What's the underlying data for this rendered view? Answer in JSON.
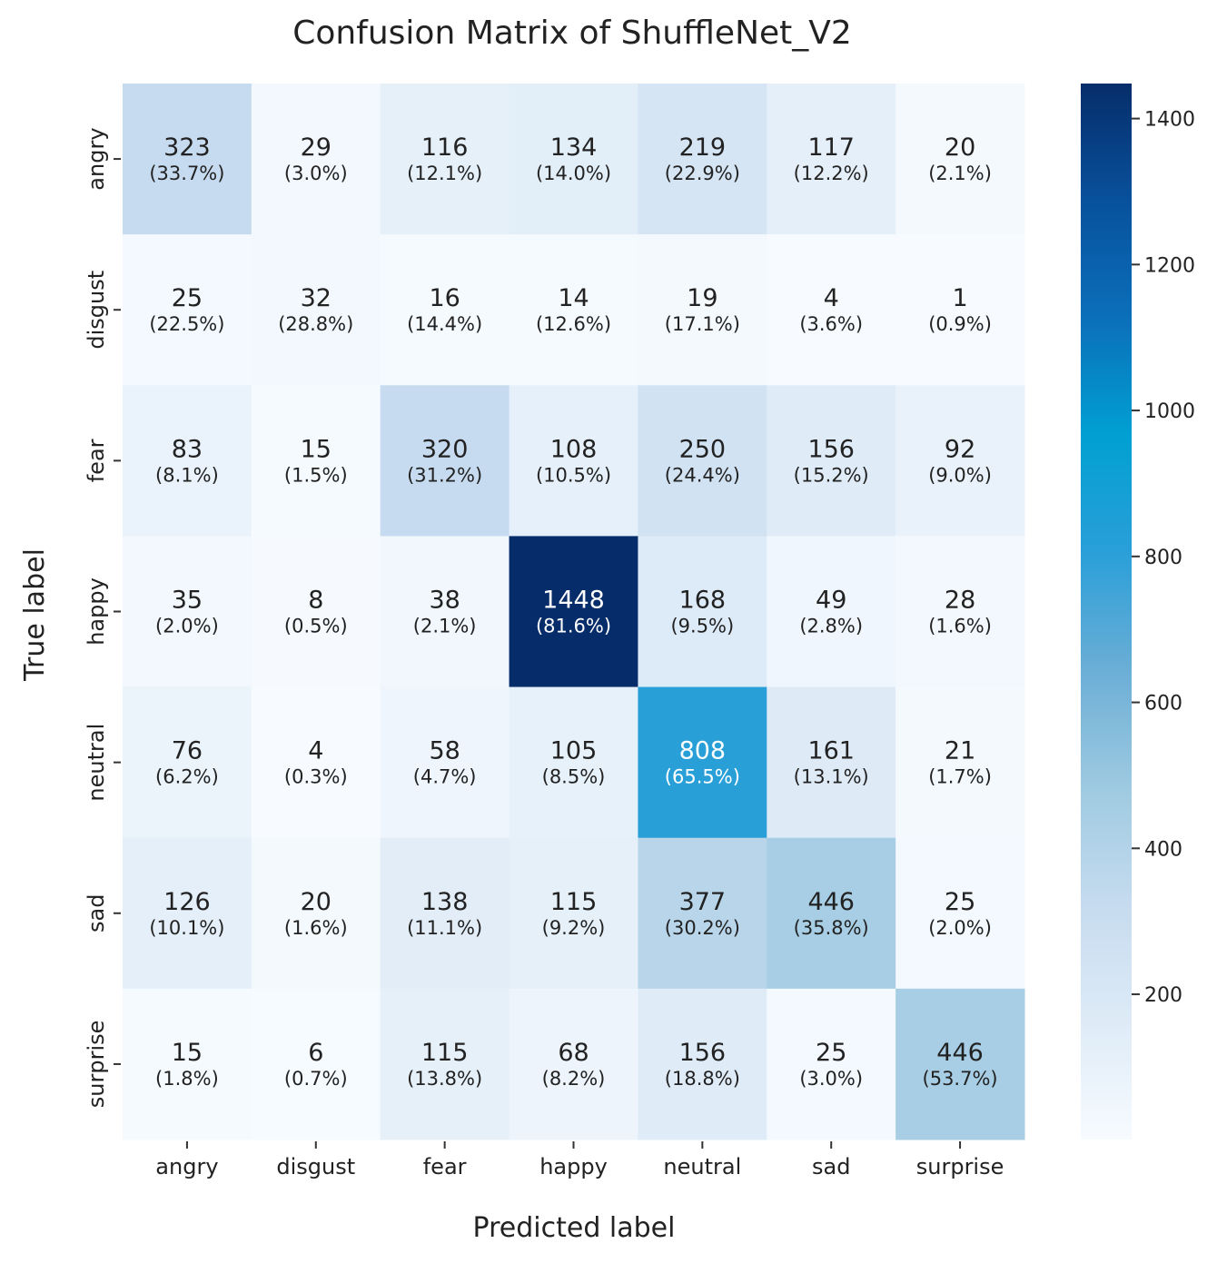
{
  "chart_data": {
    "type": "heatmap",
    "title": "Confusion Matrix of ShuffleNet_V2",
    "xlabel": "Predicted label",
    "ylabel": "True label",
    "x_categories": [
      "angry",
      "disgust",
      "fear",
      "happy",
      "neutral",
      "sad",
      "surprise"
    ],
    "y_categories": [
      "angry",
      "disgust",
      "fear",
      "happy",
      "neutral",
      "sad",
      "surprise"
    ],
    "values": [
      [
        323,
        29,
        116,
        134,
        219,
        117,
        20
      ],
      [
        25,
        32,
        16,
        14,
        19,
        4,
        1
      ],
      [
        83,
        15,
        320,
        108,
        250,
        156,
        92
      ],
      [
        35,
        8,
        38,
        1448,
        168,
        49,
        28
      ],
      [
        76,
        4,
        58,
        105,
        808,
        161,
        21
      ],
      [
        126,
        20,
        138,
        115,
        377,
        446,
        25
      ],
      [
        15,
        6,
        115,
        68,
        156,
        25,
        446
      ]
    ],
    "percentages": [
      [
        "(33.7%)",
        "(3.0%)",
        "(12.1%)",
        "(14.0%)",
        "(22.9%)",
        "(12.2%)",
        "(2.1%)"
      ],
      [
        "(22.5%)",
        "(28.8%)",
        "(14.4%)",
        "(12.6%)",
        "(17.1%)",
        "(3.6%)",
        "(0.9%)"
      ],
      [
        "(8.1%)",
        "(1.5%)",
        "(31.2%)",
        "(10.5%)",
        "(24.4%)",
        "(15.2%)",
        "(9.0%)"
      ],
      [
        "(2.0%)",
        "(0.5%)",
        "(2.1%)",
        "(81.6%)",
        "(9.5%)",
        "(2.8%)",
        "(1.6%)"
      ],
      [
        "(6.2%)",
        "(0.3%)",
        "(4.7%)",
        "(8.5%)",
        "(65.5%)",
        "(13.1%)",
        "(1.7%)"
      ],
      [
        "(10.1%)",
        "(1.6%)",
        "(11.1%)",
        "(9.2%)",
        "(30.2%)",
        "(35.8%)",
        "(2.0%)"
      ],
      [
        "(1.8%)",
        "(0.7%)",
        "(13.8%)",
        "(8.2%)",
        "(18.8%)",
        "(3.0%)",
        "(53.7%)"
      ]
    ],
    "colorbar": {
      "range": [
        1,
        1448
      ],
      "ticks": [
        200,
        400,
        600,
        800,
        1000,
        1200,
        1400
      ],
      "colormap": "Blues",
      "colors": [
        "#f7fbff",
        "#deebf7",
        "#c6dbef",
        "#9ecae1",
        "#6baed6",
        "#2a9fd8",
        "#00a0d2",
        "#0b6fba",
        "#08519c",
        "#062d6a"
      ]
    },
    "label_dark_color": "#222222",
    "label_light_color": "#ffffff"
  }
}
